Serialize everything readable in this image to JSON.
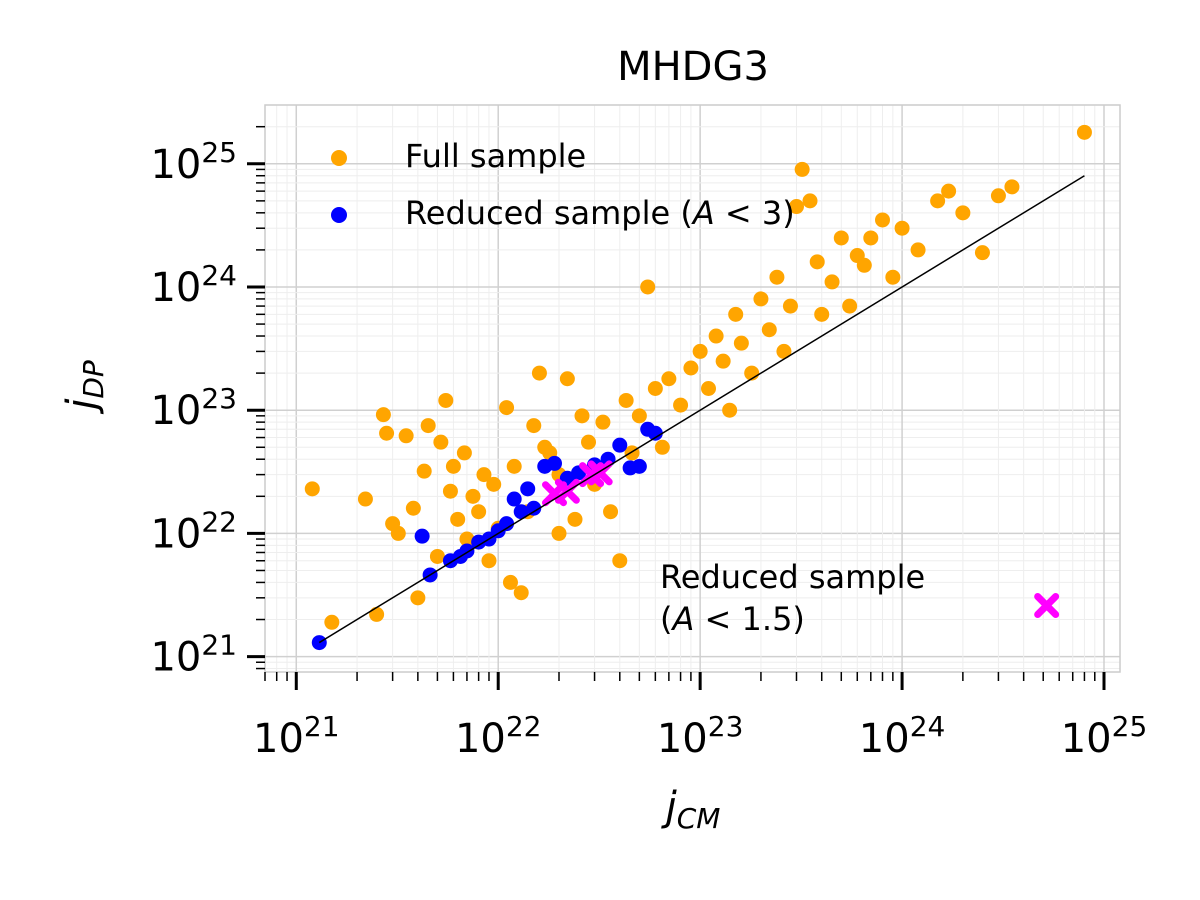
{
  "chart_data": {
    "type": "scatter",
    "title": "MHDG3",
    "xlabel": "j",
    "xlabel_sub": "CM",
    "ylabel": "j",
    "ylabel_sub": "DP",
    "xscale": "log",
    "yscale": "log",
    "xlim": [
      7e+20,
      1.2e+25
    ],
    "ylim": [
      7.5e+20,
      3e+25
    ],
    "x_ticks": [
      {
        "base": "10",
        "exp": "21"
      },
      {
        "base": "10",
        "exp": "22"
      },
      {
        "base": "10",
        "exp": "23"
      },
      {
        "base": "10",
        "exp": "24"
      },
      {
        "base": "10",
        "exp": "25"
      }
    ],
    "y_ticks": [
      {
        "base": "10",
        "exp": "21"
      },
      {
        "base": "10",
        "exp": "22"
      },
      {
        "base": "10",
        "exp": "23"
      },
      {
        "base": "10",
        "exp": "24"
      },
      {
        "base": "10",
        "exp": "25"
      }
    ],
    "grid": true,
    "legend_position": "top-left",
    "fit_line": {
      "name": "y = x",
      "x": [
        1.3e+21,
        8e+24
      ],
      "y": [
        1.3e+21,
        8e+24
      ],
      "color": "#000000"
    },
    "series": [
      {
        "name": "Full sample",
        "color": "#FFA500",
        "marker": "circle",
        "points": [
          [
            1.2e+21,
            2.3e+22
          ],
          [
            1.5e+21,
            1.9e+21
          ],
          [
            2.2e+21,
            1.9e+22
          ],
          [
            2.5e+21,
            2.2e+21
          ],
          [
            2.7e+21,
            9.2e+22
          ],
          [
            2.8e+21,
            6.5e+22
          ],
          [
            3e+21,
            1.2e+22
          ],
          [
            3.2e+21,
            1e+22
          ],
          [
            3.5e+21,
            6.2e+22
          ],
          [
            3.8e+21,
            1.6e+22
          ],
          [
            4e+21,
            3e+21
          ],
          [
            4.3e+21,
            3.2e+22
          ],
          [
            4.5e+21,
            7.5e+22
          ],
          [
            5e+21,
            6.5e+21
          ],
          [
            5.2e+21,
            5.5e+22
          ],
          [
            5.5e+21,
            1.2e+23
          ],
          [
            5.8e+21,
            2.2e+22
          ],
          [
            6e+21,
            3.5e+22
          ],
          [
            6.3e+21,
            1.3e+22
          ],
          [
            6.8e+21,
            4.5e+22
          ],
          [
            7e+21,
            9e+21
          ],
          [
            7.5e+21,
            2e+22
          ],
          [
            8e+21,
            1.5e+22
          ],
          [
            8.5e+21,
            3e+22
          ],
          [
            9e+21,
            6e+21
          ],
          [
            9.5e+21,
            2.5e+22
          ],
          [
            1e+22,
            1.1e+22
          ],
          [
            1.1e+22,
            1.05e+23
          ],
          [
            1.15e+22,
            4e+21
          ],
          [
            1.2e+22,
            3.5e+22
          ],
          [
            1.3e+22,
            3.3e+21
          ],
          [
            1.4e+22,
            1.5e+22
          ],
          [
            1.5e+22,
            7.5e+22
          ],
          [
            1.6e+22,
            2e+23
          ],
          [
            1.7e+22,
            5e+22
          ],
          [
            1.8e+22,
            4.5e+22
          ],
          [
            2e+22,
            3e+22
          ],
          [
            2.2e+22,
            1.8e+23
          ],
          [
            2.4e+22,
            1.3e+22
          ],
          [
            2.6e+22,
            9e+22
          ],
          [
            2.8e+22,
            5.5e+22
          ],
          [
            3e+22,
            2.5e+22
          ],
          [
            3.3e+22,
            8e+22
          ],
          [
            3.6e+22,
            1.5e+22
          ],
          [
            4e+22,
            6e+21
          ],
          [
            4.3e+22,
            1.2e+23
          ],
          [
            4.6e+22,
            4.5e+22
          ],
          [
            5e+22,
            9e+22
          ],
          [
            5.5e+22,
            1e+24
          ],
          [
            6e+22,
            1.5e+23
          ],
          [
            6.5e+22,
            5e+22
          ],
          [
            7e+22,
            1.8e+23
          ],
          [
            8e+22,
            1.1e+23
          ],
          [
            9e+22,
            2.2e+23
          ],
          [
            1e+23,
            3e+23
          ],
          [
            1.1e+23,
            1.5e+23
          ],
          [
            1.2e+23,
            4e+23
          ],
          [
            1.3e+23,
            2.5e+23
          ],
          [
            1.4e+23,
            1e+23
          ],
          [
            1.5e+23,
            6e+23
          ],
          [
            1.6e+23,
            3.5e+23
          ],
          [
            1.8e+23,
            2e+23
          ],
          [
            2e+23,
            8e+23
          ],
          [
            2.2e+23,
            4.5e+23
          ],
          [
            2.4e+23,
            1.2e+24
          ],
          [
            2.6e+23,
            3e+23
          ],
          [
            2.8e+23,
            7e+23
          ],
          [
            3e+23,
            4.5e+24
          ],
          [
            3.2e+23,
            9e+24
          ],
          [
            3.5e+23,
            5e+24
          ],
          [
            3.8e+23,
            1.6e+24
          ],
          [
            4e+23,
            6e+23
          ],
          [
            4.5e+23,
            1.1e+24
          ],
          [
            5e+23,
            2.5e+24
          ],
          [
            5.5e+23,
            7e+23
          ],
          [
            6e+23,
            1.8e+24
          ],
          [
            6.5e+23,
            1.5e+24
          ],
          [
            7e+23,
            2.5e+24
          ],
          [
            8e+23,
            3.5e+24
          ],
          [
            9e+23,
            1.2e+24
          ],
          [
            1e+24,
            3e+24
          ],
          [
            1.2e+24,
            2e+24
          ],
          [
            1.5e+24,
            5e+24
          ],
          [
            1.7e+24,
            6e+24
          ],
          [
            2e+24,
            4e+24
          ],
          [
            2.5e+24,
            1.9e+24
          ],
          [
            3e+24,
            5.5e+24
          ],
          [
            3.5e+24,
            6.5e+24
          ],
          [
            8e+24,
            1.8e+25
          ],
          [
            2e+22,
            1e+22
          ]
        ]
      },
      {
        "name": "Reduced sample (A < 3)",
        "color": "#0000FF",
        "marker": "circle",
        "points": [
          [
            1.3e+21,
            1.3e+21
          ],
          [
            4.2e+21,
            9.5e+21
          ],
          [
            4.6e+21,
            4.6e+21
          ],
          [
            5.8e+21,
            6e+21
          ],
          [
            6.5e+21,
            6.5e+21
          ],
          [
            7e+21,
            7.2e+21
          ],
          [
            8e+21,
            8.5e+21
          ],
          [
            9e+21,
            9e+21
          ],
          [
            1e+22,
            1.05e+22
          ],
          [
            1.1e+22,
            1.2e+22
          ],
          [
            1.2e+22,
            1.9e+22
          ],
          [
            1.3e+22,
            1.5e+22
          ],
          [
            1.4e+22,
            2.3e+22
          ],
          [
            1.5e+22,
            1.6e+22
          ],
          [
            1.7e+22,
            3.5e+22
          ],
          [
            1.9e+22,
            3.7e+22
          ],
          [
            2.2e+22,
            2.8e+22
          ],
          [
            2.5e+22,
            3.1e+22
          ],
          [
            3e+22,
            3.6e+22
          ],
          [
            3.5e+22,
            4e+22
          ],
          [
            4e+22,
            5.2e+22
          ],
          [
            4.5e+22,
            3.4e+22
          ],
          [
            5e+22,
            3.5e+22
          ],
          [
            5.5e+22,
            7e+22
          ],
          [
            6e+22,
            6.5e+22
          ]
        ]
      },
      {
        "name": "Reduced sample (A < 1.5)",
        "color": "#FF00FF",
        "marker": "x",
        "points": [
          [
            1.9e+22,
            2.1e+22
          ],
          [
            2.2e+22,
            2.2e+22
          ],
          [
            2.9e+22,
            3e+22
          ],
          [
            3.2e+22,
            3.1e+22
          ]
        ]
      }
    ],
    "legend": [
      "Full sample",
      "Reduced sample (",
      "A",
      " < 3)"
    ],
    "annotation": {
      "line1": "Reduced sample",
      "line2_prefix": "(",
      "line2_var": "A",
      "line2_suffix": " < 1.5)",
      "marker_point": [
        5.2e+24,
        2.6e+21
      ]
    }
  }
}
